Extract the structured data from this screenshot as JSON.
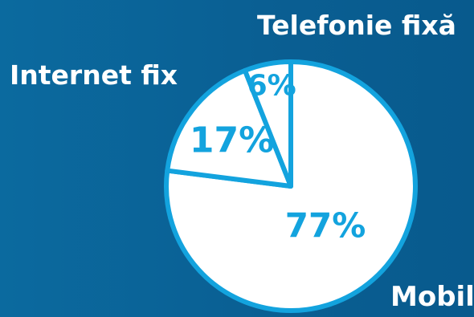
{
  "chart_data": {
    "type": "pie",
    "categories": [
      "Mobil",
      "Internet fix",
      "Telefonie fixă"
    ],
    "values": [
      77,
      17,
      6
    ],
    "value_labels": [
      "77%",
      "17%",
      "6%"
    ],
    "title": "",
    "legend": "none",
    "colors": {
      "background": "#0a6196",
      "slice_fill": "#ffffff",
      "slice_stroke": "#13a3de",
      "value_text": "#13a3de",
      "category_text": "#ffffff"
    }
  }
}
